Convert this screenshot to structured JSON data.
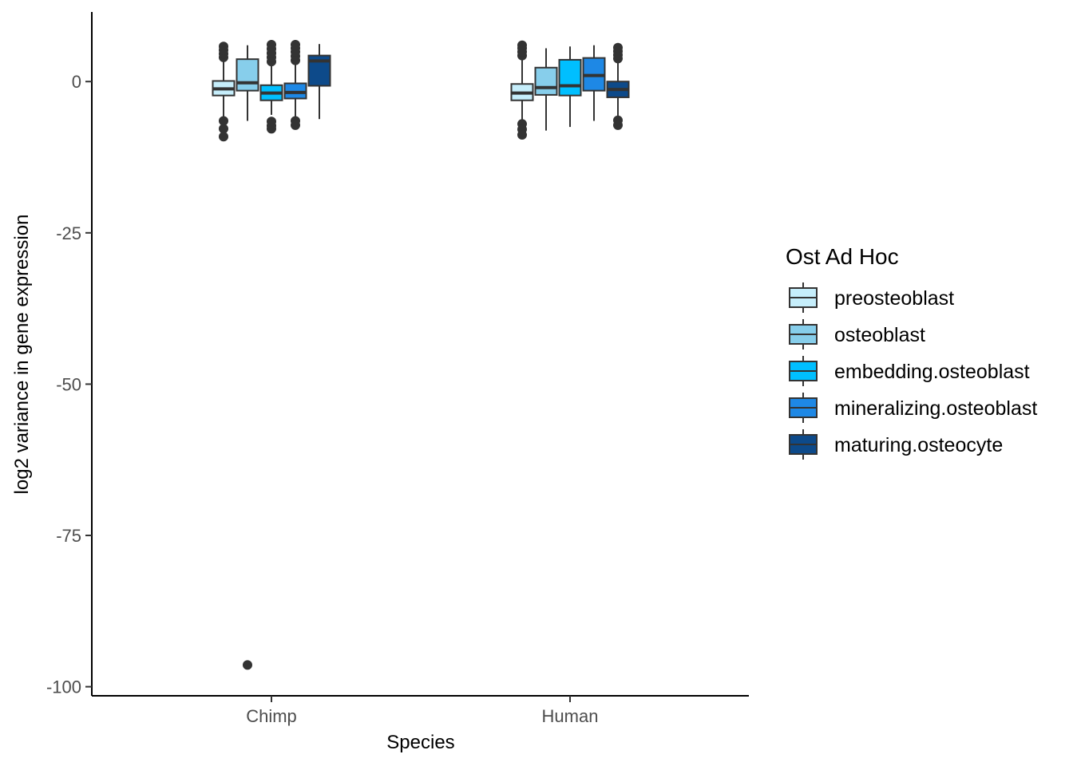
{
  "chart_data": {
    "type": "boxplot",
    "xlabel": "Species",
    "ylabel": "log2 variance in gene expression",
    "ylim": [
      -101.5,
      11.5
    ],
    "y_ticks": [
      0,
      -25,
      -50,
      -75,
      -100
    ],
    "y_tick_labels": [
      "0",
      "-25",
      "-50",
      "-75",
      "-100"
    ],
    "categories": [
      "Chimp",
      "Human"
    ],
    "grid": false,
    "legend": {
      "title": "Ost Ad Hoc",
      "position": "right"
    },
    "series": [
      {
        "name": "preosteoblast",
        "color": "#C6EEFB",
        "boxes": [
          {
            "category": "Chimp",
            "min": -5.8,
            "q1": -2.3,
            "median": -1.2,
            "q3": 0.1,
            "max": 3.5,
            "outliers_high": [
              4.0,
              4.6,
              5.2,
              5.8
            ],
            "outliers_low": [
              -6.5,
              -7.8,
              -9.1
            ]
          },
          {
            "category": "Human",
            "min": -6.3,
            "q1": -3.1,
            "median": -1.9,
            "q3": -0.4,
            "max": 3.8,
            "outliers_high": [
              4.3,
              4.9,
              5.5,
              6.0
            ],
            "outliers_low": [
              -7.0,
              -7.9,
              -8.8
            ]
          }
        ]
      },
      {
        "name": "osteoblast",
        "color": "#87CEEB",
        "boxes": [
          {
            "category": "Chimp",
            "min": -6.5,
            "q1": -1.5,
            "median": -0.2,
            "q3": 3.7,
            "max": 6.0,
            "outliers_high": [],
            "outliers_low": [
              -96.4
            ]
          },
          {
            "category": "Human",
            "min": -8.1,
            "q1": -2.2,
            "median": -1.0,
            "q3": 2.3,
            "max": 5.5,
            "outliers_high": [],
            "outliers_low": []
          }
        ]
      },
      {
        "name": "embedding.osteoblast",
        "color": "#00BFFF",
        "boxes": [
          {
            "category": "Chimp",
            "min": -5.5,
            "q1": -3.1,
            "median": -1.9,
            "q3": -0.6,
            "max": 2.8,
            "outliers_high": [
              3.3,
              4.0,
              4.7,
              5.4,
              6.1
            ],
            "outliers_low": [
              -6.6,
              -7.3,
              -7.8
            ]
          },
          {
            "category": "Human",
            "min": -7.5,
            "q1": -2.3,
            "median": -0.7,
            "q3": 3.6,
            "max": 5.8,
            "outliers_high": [],
            "outliers_low": []
          }
        ]
      },
      {
        "name": "mineralizing.osteoblast",
        "color": "#1E88E5",
        "boxes": [
          {
            "category": "Chimp",
            "min": -5.8,
            "q1": -2.8,
            "median": -1.8,
            "q3": -0.3,
            "max": 3.0,
            "outliers_high": [
              3.5,
              4.2,
              4.9,
              5.5,
              6.1
            ],
            "outliers_low": [
              -6.5,
              -7.2
            ]
          },
          {
            "category": "Human",
            "min": -6.5,
            "q1": -1.5,
            "median": 1.0,
            "q3": 3.9,
            "max": 6.0,
            "outliers_high": [],
            "outliers_low": []
          }
        ]
      },
      {
        "name": "maturing.osteocyte",
        "color": "#0D4A8A",
        "boxes": [
          {
            "category": "Chimp",
            "min": -6.2,
            "q1": -0.7,
            "median": 3.4,
            "q3": 4.3,
            "max": 6.2,
            "outliers_high": [],
            "outliers_low": []
          },
          {
            "category": "Human",
            "min": -5.8,
            "q1": -2.6,
            "median": -1.3,
            "q3": 0.0,
            "max": 3.3,
            "outliers_high": [
              3.8,
              4.4,
              5.0,
              5.6
            ],
            "outliers_low": [
              -6.4,
              -7.2
            ]
          }
        ]
      }
    ]
  }
}
